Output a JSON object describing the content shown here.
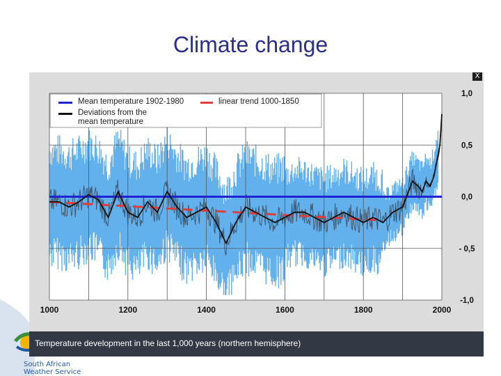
{
  "slide": {
    "title": "Climate change",
    "logo_line1": "South  African",
    "logo_line2": "Weather Service"
  },
  "chart": {
    "close_label": "X",
    "caption": "Temperature development in the last 1,000 years (northern hemisphere)"
  },
  "colors": {
    "band": "#52a9ea",
    "band_dark": "#2e6da8",
    "mean_line": "#1f23d6",
    "trend_dash": "#e03c3c",
    "deviation": "#111111",
    "plot_bg": "#ffffff",
    "frame_bg": "#dcdcdc",
    "title": "#2b2f86"
  },
  "chart_data": {
    "type": "line",
    "title": "",
    "xlabel": "",
    "ylabel": "",
    "xlim": [
      1000,
      2000
    ],
    "ylim": [
      -1.0,
      1.0
    ],
    "x_ticks": [
      1000,
      1200,
      1400,
      1600,
      1800,
      2000
    ],
    "y_ticks": [
      -1.0,
      -0.5,
      0.0,
      0.5,
      1.0
    ],
    "y_tick_labels": [
      "-1,0",
      "- 0,5",
      "0,0",
      "0,5",
      "1,0"
    ],
    "legend_placement": "top-left",
    "grid": true,
    "series": [
      {
        "name": "Mean temperature 1902-1980",
        "kind": "line",
        "x": [
          1000,
          2000
        ],
        "values": [
          0.0,
          0.0
        ]
      },
      {
        "name": "linear trend 1000-1850",
        "kind": "dashed",
        "x": [
          1000,
          1850
        ],
        "values": [
          -0.05,
          -0.23
        ]
      },
      {
        "name": "Deviations from the mean temperature",
        "kind": "line",
        "x": [
          1000,
          1025,
          1050,
          1075,
          1100,
          1125,
          1150,
          1175,
          1200,
          1225,
          1250,
          1275,
          1300,
          1325,
          1350,
          1375,
          1400,
          1425,
          1450,
          1475,
          1500,
          1525,
          1550,
          1575,
          1600,
          1625,
          1650,
          1675,
          1700,
          1725,
          1750,
          1775,
          1800,
          1825,
          1850,
          1875,
          1900,
          1915,
          1925,
          1940,
          1950,
          1960,
          1970,
          1980,
          1990,
          1995,
          2000
        ],
        "values": [
          -0.05,
          -0.05,
          -0.1,
          -0.05,
          0.02,
          -0.03,
          -0.2,
          0.05,
          -0.15,
          -0.2,
          -0.05,
          -0.15,
          0.05,
          -0.1,
          -0.2,
          -0.15,
          -0.1,
          -0.25,
          -0.45,
          -0.25,
          -0.1,
          -0.15,
          -0.2,
          -0.25,
          -0.2,
          -0.15,
          -0.15,
          -0.2,
          -0.25,
          -0.2,
          -0.15,
          -0.2,
          -0.25,
          -0.2,
          -0.25,
          -0.15,
          -0.1,
          0.05,
          0.15,
          0.1,
          0.05,
          0.15,
          0.1,
          0.2,
          0.4,
          0.5,
          0.8
        ]
      }
    ]
  }
}
